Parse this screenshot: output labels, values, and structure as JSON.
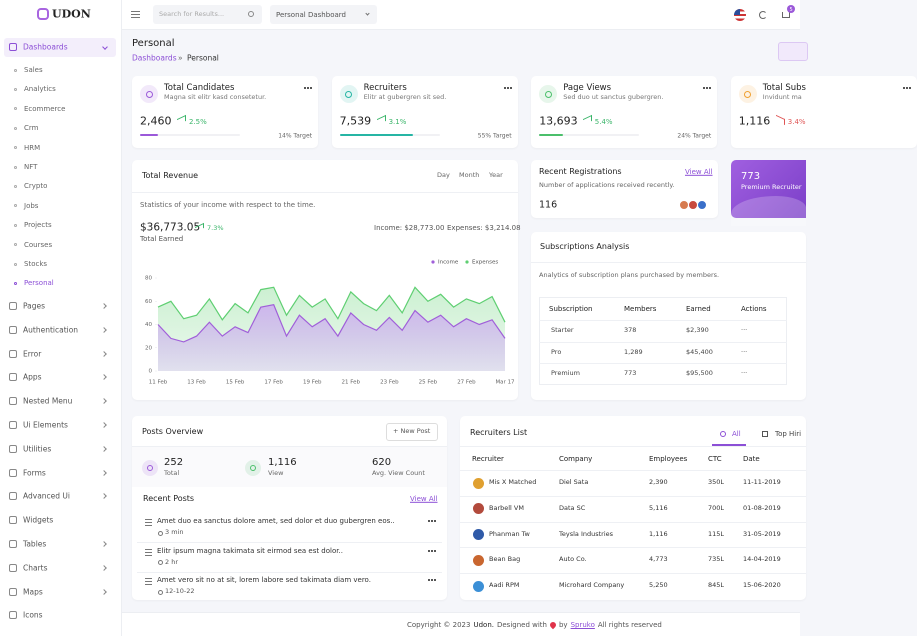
{
  "brand": "UDON",
  "sidebar": {
    "active": "Dashboards",
    "sub": [
      "Sales",
      "Analytics",
      "Ecommerce",
      "Crm",
      "HRM",
      "NFT",
      "Crypto",
      "Jobs",
      "Projects",
      "Courses",
      "Stocks",
      "Personal"
    ],
    "items": [
      "Pages",
      "Authentication",
      "Error",
      "Apps",
      "Nested Menu",
      "Ui Elements",
      "Utilities",
      "Forms",
      "Advanced Ui",
      "Widgets",
      "Tables",
      "Charts",
      "Maps",
      "Icons"
    ]
  },
  "header": {
    "search_placeholder": "Search for Results...",
    "dashboard_select": "Personal Dashboard",
    "cart_count": 5
  },
  "page": {
    "title": "Personal",
    "breadcrumb": [
      "Dashboards",
      "Personal"
    ],
    "breadcrumb_separator": "»"
  },
  "stats": [
    {
      "title": "Total Candidates",
      "subtitle": "Magna sit elitr kasd consetetur.",
      "value": "2,460",
      "change": "2.5%",
      "target": "14% Target"
    },
    {
      "title": "Recruiters",
      "subtitle": "Elitr at gubergren sit sed.",
      "value": "7,539",
      "change": "3.1%",
      "target": "55% Target"
    },
    {
      "title": "Page Views",
      "subtitle": "Sed duo ut sanctus gubergren.",
      "value": "13,693",
      "change": "5.4%",
      "target": "24% Target"
    },
    {
      "title": "Total Subs",
      "subtitle": "Invidunt ma",
      "value": "1,116",
      "change": "3.4%"
    }
  ],
  "revenue": {
    "title": "Total Revenue",
    "tabs": [
      "Day",
      "Month",
      "Year"
    ],
    "description": "Statistics of your income with respect to the time.",
    "total": "$36,773.05",
    "change": "7.3%",
    "total_label": "Total Earned",
    "income": "Income: $28,773.00",
    "expenses": "Expenses: $3,214.08"
  },
  "chart_data": {
    "type": "area",
    "categories": [
      "11 Feb",
      null,
      null,
      "13 Feb",
      null,
      null,
      "15 Feb",
      null,
      null,
      "17 Feb",
      null,
      null,
      "19 Feb",
      null,
      null,
      "21 Feb",
      null,
      null,
      "23 Feb",
      null,
      null,
      "25 Feb",
      null,
      null,
      "27 Feb",
      null,
      null,
      "Mar 17"
    ],
    "series": [
      {
        "name": "Income",
        "color": "#a05fd9",
        "values": [
          40,
          28,
          25,
          30,
          42,
          30,
          38,
          33,
          55,
          57,
          30,
          48,
          38,
          45,
          30,
          50,
          40,
          35,
          46,
          35,
          52,
          42,
          48,
          38,
          45,
          40,
          44,
          28
        ]
      },
      {
        "name": "Expenses",
        "color": "#5fcf72",
        "values": [
          55,
          60,
          45,
          48,
          62,
          44,
          58,
          50,
          70,
          72,
          48,
          65,
          55,
          62,
          45,
          68,
          58,
          52,
          65,
          50,
          72,
          60,
          66,
          55,
          62,
          58,
          64,
          42
        ]
      }
    ],
    "ylim": [
      0,
      80
    ],
    "yticks": [
      0,
      20,
      40,
      60,
      80
    ],
    "grid": false,
    "legend": "top-right"
  },
  "registrations": {
    "title": "Recent Registrations",
    "link": "View All",
    "subtitle": "Number of applications received recently.",
    "count": "116"
  },
  "premium": {
    "value": "773",
    "label": "Premium Recruiter"
  },
  "subscriptions": {
    "title": "Subscriptions Analysis",
    "subtitle": "Analytics of subscription plans purchased by members.",
    "columns": [
      "Subscription",
      "Members",
      "Earned",
      "Actions"
    ],
    "rows": [
      [
        "Starter",
        "378",
        "$2,390",
        "···"
      ],
      [
        "Pro",
        "1,289",
        "$45,400",
        "···"
      ],
      [
        "Premium",
        "773",
        "$95,500",
        "···"
      ]
    ]
  },
  "posts": {
    "title": "Posts Overview",
    "button": "+ New Post",
    "stats": [
      {
        "value": "252",
        "label": "Total"
      },
      {
        "value": "1,116",
        "label": "View"
      },
      {
        "value": "620",
        "label": "Avg. View Count"
      }
    ],
    "recent_title": "Recent Posts",
    "link": "View All",
    "items": [
      {
        "text": "Amet duo ea sanctus dolore amet, sed dolor et duo gubergren eos..",
        "time": "3 min"
      },
      {
        "text": "Elitr ipsum magna takimata sit eirmod sea est dolor..",
        "time": "2 hr"
      },
      {
        "text": "Amet vero sit no at sit, lorem labore sed takimata diam vero.",
        "time": "12-10-22"
      }
    ]
  },
  "recruiters": {
    "title": "Recruiters List",
    "tabs": [
      "All",
      "Top Hiri"
    ],
    "columns": [
      "Recruiter",
      "Company",
      "Employees",
      "CTC",
      "Date"
    ],
    "rows": [
      [
        "Mis X Matched",
        "Diel Sata",
        "2,390",
        "350L",
        "11-11-2019"
      ],
      [
        "Barbell VM",
        "Data SC",
        "5,116",
        "700L",
        "01-08-2019"
      ],
      [
        "Phanman Tw",
        "Teysla Industries",
        "1,116",
        "115L",
        "31-05-2019"
      ],
      [
        "Bean Bag",
        "Auto Co.",
        "4,773",
        "735L",
        "14-04-2019"
      ],
      [
        "Aadi RPM",
        "Microhard Company",
        "5,250",
        "845L",
        "15-06-2020"
      ]
    ]
  },
  "footer": {
    "copyright": "Copyright © 2023",
    "brand": "Udon.",
    "designed": "Designed with",
    "by": "by",
    "company": "Spruko",
    "rights": "All rights reserved"
  }
}
